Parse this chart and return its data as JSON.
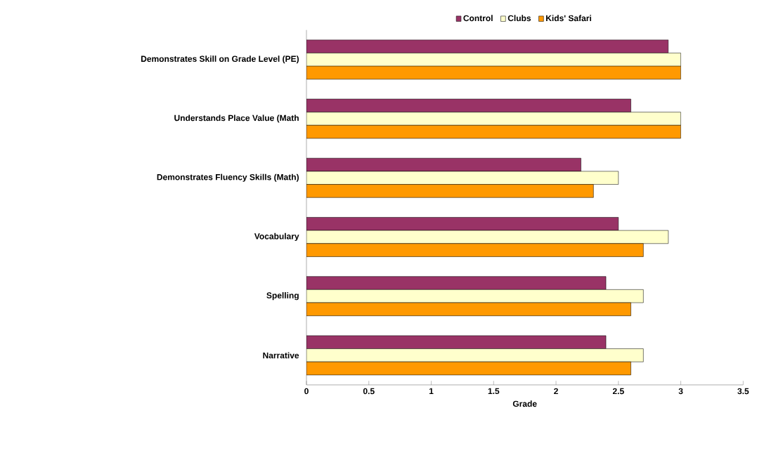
{
  "chart_data": {
    "type": "bar",
    "orientation": "horizontal",
    "xlabel": "Grade",
    "categories": [
      "Demonstrates Skill on Grade Level (PE)",
      "Understands Place Value (Math",
      "Demonstrates Fluency Skills (Math)",
      "Vocabulary",
      "Spelling",
      "Narrative"
    ],
    "series": [
      {
        "name": "Control",
        "color": "#993366",
        "values": [
          2.9,
          2.6,
          2.2,
          2.5,
          2.4,
          2.4
        ]
      },
      {
        "name": "Clubs",
        "color": "#ffffcc",
        "values": [
          3,
          3,
          2.5,
          2.9,
          2.7,
          2.7
        ]
      },
      {
        "name": "Kids' Safari",
        "color": "#ff9900",
        "values": [
          3,
          3,
          2.3,
          2.7,
          2.6,
          2.6
        ]
      }
    ],
    "xlim": [
      0,
      3.5
    ],
    "xticks": [
      0,
      0.5,
      1,
      1.5,
      2,
      2.5,
      3,
      3.5
    ],
    "grid": false,
    "legend": "top"
  }
}
